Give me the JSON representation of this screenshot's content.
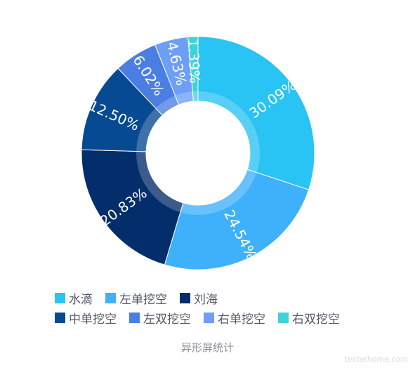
{
  "chart_data": {
    "type": "pie",
    "variant": "donut",
    "title": "异形屏统计",
    "categories": [
      "水滴",
      "左单挖空",
      "刘海",
      "中单挖空",
      "左双挖空",
      "右单挖空",
      "右双挖空"
    ],
    "values": [
      30.09,
      24.54,
      20.83,
      12.5,
      6.02,
      4.63,
      1.39
    ],
    "labels": [
      "30.09%",
      "24.54%",
      "20.83%",
      "12.50%",
      "6.02%",
      "4.63%",
      "1.39%"
    ],
    "colors": [
      "#29c3f4",
      "#3fb0fb",
      "#032d6b",
      "#064a93",
      "#4a7ee3",
      "#6d9ff7",
      "#3fd3d9"
    ],
    "legend": {
      "position": "bottom",
      "rows": [
        [
          "水滴",
          "左单挖空",
          "刘海"
        ],
        [
          "中单挖空",
          "左双挖空",
          "右单挖空",
          "右双挖空"
        ]
      ]
    }
  },
  "watermark": "testerhome.com"
}
